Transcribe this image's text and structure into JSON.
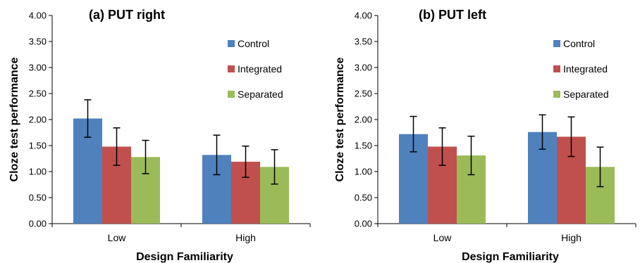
{
  "colors": {
    "Control": "#4f81bd",
    "Integrated": "#c0504d",
    "Separated": "#9bbb59"
  },
  "chart_data": [
    {
      "type": "bar",
      "title": "(a) PUT right",
      "xlabel": "Design Familiarity",
      "ylabel": "Cloze test performance",
      "categories": [
        "Low",
        "High"
      ],
      "ylim": [
        0,
        4
      ],
      "yticks": [
        "0.00",
        "0.50",
        "1.00",
        "1.50",
        "2.00",
        "2.50",
        "3.00",
        "3.50",
        "4.00"
      ],
      "grid": false,
      "legend_position": "top-right",
      "series": [
        {
          "name": "Control",
          "values": [
            2.02,
            1.32
          ],
          "errors": [
            0.36,
            0.38
          ]
        },
        {
          "name": "Integrated",
          "values": [
            1.48,
            1.19
          ],
          "errors": [
            0.36,
            0.3
          ]
        },
        {
          "name": "Separated",
          "values": [
            1.28,
            1.09
          ],
          "errors": [
            0.32,
            0.33
          ]
        }
      ]
    },
    {
      "type": "bar",
      "title": "(b) PUT left",
      "xlabel": "Design Familiarity",
      "ylabel": "Cloze test performance",
      "categories": [
        "Low",
        "High"
      ],
      "ylim": [
        0,
        4
      ],
      "yticks": [
        "0.00",
        "0.50",
        "1.00",
        "1.50",
        "2.00",
        "2.50",
        "3.00",
        "3.50",
        "4.00"
      ],
      "grid": false,
      "legend_position": "top-right",
      "series": [
        {
          "name": "Control",
          "values": [
            1.72,
            1.76
          ],
          "errors": [
            0.34,
            0.33
          ]
        },
        {
          "name": "Integrated",
          "values": [
            1.48,
            1.67
          ],
          "errors": [
            0.36,
            0.38
          ]
        },
        {
          "name": "Separated",
          "values": [
            1.31,
            1.09
          ],
          "errors": [
            0.37,
            0.38
          ]
        }
      ]
    }
  ]
}
